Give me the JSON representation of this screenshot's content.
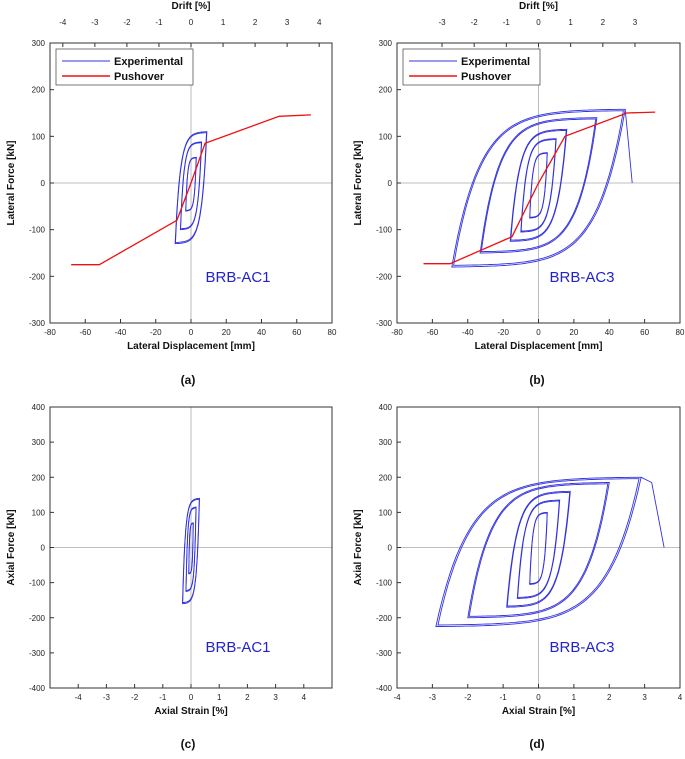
{
  "colors": {
    "experimental": "#3333dd",
    "pushover": "#ee1111",
    "axis": "#333333",
    "zero": "#aaaaaa",
    "specimen_text": "#2222cc"
  },
  "chart_data": [
    {
      "type": "line",
      "panel_label": "(a)",
      "specimen": "BRB-AC1",
      "xlabel": "Lateral Displacement [mm]",
      "ylabel": "Lateral Force [kN]",
      "x2label": "Drift [%]",
      "xlim": [
        -80,
        80
      ],
      "ylim": [
        -300,
        300
      ],
      "x2lim": [
        -4.4,
        4.4
      ],
      "xticks": [
        -80,
        -60,
        -40,
        -20,
        0,
        20,
        40,
        60,
        80
      ],
      "yticks": [
        -300,
        -200,
        -100,
        0,
        100,
        200,
        300
      ],
      "x2ticks": [
        -4,
        -3,
        -2,
        -1,
        0,
        1,
        2,
        3,
        4
      ],
      "legend": [
        "Experimental",
        "Pushover"
      ],
      "series": [
        {
          "name": "Experimental",
          "kind": "hysteresis",
          "loops": [
            {
              "amp": 3,
              "fmax": 55,
              "fmin": -60
            },
            {
              "amp": 6,
              "fmax": 88,
              "fmin": -100
            },
            {
              "amp": 9,
              "fmax": 110,
              "fmin": -130
            }
          ]
        },
        {
          "name": "Pushover",
          "x": [
            -68,
            -52,
            -8,
            0,
            8,
            50,
            68
          ],
          "y": [
            -175,
            -175,
            -80,
            0,
            85,
            143,
            146
          ]
        }
      ]
    },
    {
      "type": "line",
      "panel_label": "(b)",
      "specimen": "BRB-AC3",
      "xlabel": "Lateral Displacement [mm]",
      "ylabel": "Lateral Force [kN]",
      "x2label": "Drift [%]",
      "xlim": [
        -80,
        80
      ],
      "ylim": [
        -300,
        300
      ],
      "x2lim": [
        -4.4,
        4.4
      ],
      "xticks": [
        -80,
        -60,
        -40,
        -20,
        0,
        20,
        40,
        60,
        80
      ],
      "yticks": [
        -300,
        -200,
        -100,
        0,
        100,
        200,
        300
      ],
      "x2ticks": [
        -3,
        -2,
        -1,
        0,
        1,
        2,
        3
      ],
      "legend": [
        "Experimental",
        "Pushover"
      ],
      "series": [
        {
          "name": "Experimental",
          "kind": "hysteresis",
          "loops": [
            {
              "amp": 5,
              "fmax": 65,
              "fmin": -75
            },
            {
              "amp": 10,
              "fmax": 95,
              "fmin": -105
            },
            {
              "amp": 16,
              "fmax": 115,
              "fmin": -125
            },
            {
              "amp": 33,
              "fmax": 140,
              "fmin": -150
            },
            {
              "amp": 49,
              "fmax": 158,
              "fmin": -180
            }
          ],
          "tail": {
            "x": [
              49,
              51,
              53
            ],
            "y": [
              158,
              80,
              0
            ]
          }
        },
        {
          "name": "Pushover",
          "x": [
            -65,
            -50,
            -15,
            0,
            15,
            50,
            66
          ],
          "y": [
            -173,
            -173,
            -115,
            0,
            100,
            150,
            152
          ]
        }
      ]
    },
    {
      "type": "line",
      "panel_label": "(c)",
      "specimen": "BRB-AC1",
      "xlabel": "Axial Strain [%]",
      "ylabel": "Axial Force [kN]",
      "xlim": [
        -5,
        5
      ],
      "ylim": [
        -400,
        400
      ],
      "xticks": [
        -4,
        -3,
        -2,
        -1,
        0,
        1,
        2,
        3,
        4
      ],
      "yticks": [
        -400,
        -300,
        -200,
        -100,
        0,
        100,
        200,
        300,
        400
      ],
      "series": [
        {
          "name": "Experimental",
          "kind": "hysteresis",
          "loops": [
            {
              "amp": 0.08,
              "fmax": 70,
              "fmin": -75
            },
            {
              "amp": 0.18,
              "fmax": 115,
              "fmin": -125
            },
            {
              "amp": 0.3,
              "fmax": 140,
              "fmin": -160
            }
          ]
        }
      ]
    },
    {
      "type": "line",
      "panel_label": "(d)",
      "specimen": "BRB-AC3",
      "xlabel": "Axial Strain [%]",
      "ylabel": "Axial Force [kN]",
      "xlim": [
        -4,
        4
      ],
      "ylim": [
        -400,
        400
      ],
      "xticks": [
        -4,
        -3,
        -2,
        -1,
        0,
        1,
        2,
        3,
        4
      ],
      "yticks": [
        -400,
        -300,
        -200,
        -100,
        0,
        100,
        200,
        300,
        400
      ],
      "series": [
        {
          "name": "Experimental",
          "kind": "hysteresis",
          "loops": [
            {
              "amp": 0.25,
              "fmax": 100,
              "fmin": -105
            },
            {
              "amp": 0.6,
              "fmax": 135,
              "fmin": -145
            },
            {
              "amp": 0.9,
              "fmax": 160,
              "fmin": -170
            },
            {
              "amp": 2.0,
              "fmax": 185,
              "fmin": -200
            },
            {
              "amp": 2.9,
              "fmax": 200,
              "fmin": -225
            }
          ],
          "tail": {
            "x": [
              2.9,
              3.2,
              3.55
            ],
            "y": [
              200,
              185,
              0
            ]
          }
        }
      ]
    }
  ]
}
